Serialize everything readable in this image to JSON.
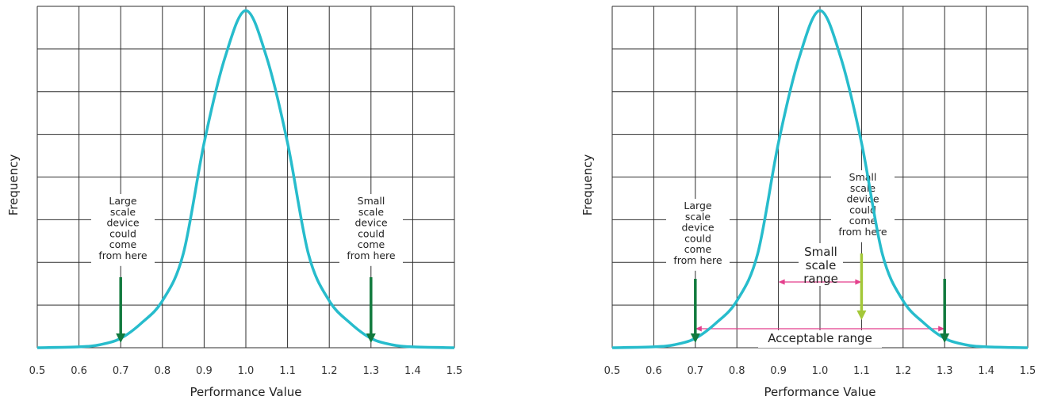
{
  "colors": {
    "curve": "#27bccc",
    "arrow_dark": "#127a3e",
    "arrow_light": "#a4c839",
    "range_line": "#e43f8c",
    "grid": "#2e2e2e"
  },
  "chart_data": [
    {
      "type": "line",
      "xlabel": "Performance Value",
      "ylabel": "Frequency",
      "xlim": [
        0.5,
        1.5
      ],
      "ylim": [
        0,
        8
      ],
      "x_ticks": [
        "0.5",
        "0.6",
        "0.7",
        "0.8",
        "0.9",
        "1.0",
        "1.1",
        "1.2",
        "1.3",
        "1.4",
        "1.5"
      ],
      "grid": true,
      "series": [
        {
          "x": [
            0.5,
            0.6,
            0.65,
            0.7,
            0.75,
            0.8,
            0.85,
            0.9,
            0.95,
            1.0,
            1.05,
            1.1,
            1.15,
            1.2,
            1.25,
            1.3,
            1.35,
            1.4,
            1.5
          ],
          "y": [
            0.0,
            0.02,
            0.07,
            0.22,
            0.58,
            1.1,
            2.2,
            4.8,
            6.8,
            7.9,
            6.8,
            4.8,
            2.2,
            1.1,
            0.58,
            0.22,
            0.07,
            0.02,
            0.0
          ]
        }
      ],
      "annotations": [
        {
          "lines": [
            "Large",
            "scale",
            "device",
            "could",
            "come",
            "from here"
          ],
          "arrow_x": 0.7,
          "arrow_style": "dark"
        },
        {
          "lines": [
            "Small",
            "scale",
            "device",
            "could",
            "come",
            "from here"
          ],
          "arrow_x": 1.3,
          "arrow_style": "dark"
        }
      ]
    },
    {
      "type": "line",
      "xlabel": "Performance Value",
      "ylabel": "Frequency",
      "xlim": [
        0.5,
        1.5
      ],
      "ylim": [
        0,
        8
      ],
      "x_ticks": [
        "0.5",
        "0.6",
        "0.7",
        "0.8",
        "0.9",
        "1.0",
        "1.1",
        "1.2",
        "1.3",
        "1.4",
        "1.5"
      ],
      "grid": true,
      "series": [
        {
          "x": [
            0.5,
            0.6,
            0.65,
            0.7,
            0.75,
            0.8,
            0.85,
            0.9,
            0.95,
            1.0,
            1.05,
            1.1,
            1.15,
            1.2,
            1.25,
            1.3,
            1.35,
            1.4,
            1.5
          ],
          "y": [
            0.0,
            0.02,
            0.07,
            0.22,
            0.58,
            1.1,
            2.2,
            4.8,
            6.8,
            7.9,
            6.8,
            4.8,
            2.2,
            1.1,
            0.58,
            0.22,
            0.07,
            0.02,
            0.0
          ]
        }
      ],
      "annotations": [
        {
          "lines": [
            "Large",
            "scale",
            "device",
            "could",
            "come",
            "from here"
          ],
          "arrow_x": 0.7,
          "arrow_style": "dark"
        },
        {
          "lines": [
            "Small",
            "scale",
            "device",
            "could",
            "come",
            "from here"
          ],
          "arrow_x": 1.1,
          "arrow_style": "light"
        },
        {
          "lines": [],
          "arrow_x": 1.3,
          "arrow_style": "dark"
        }
      ],
      "ranges": [
        {
          "label_lines": [
            "Small",
            "scale",
            "range"
          ],
          "from": 0.9,
          "to": 1.1
        },
        {
          "label_lines": [
            "Acceptable range"
          ],
          "from": 0.7,
          "to": 1.3
        }
      ]
    }
  ]
}
